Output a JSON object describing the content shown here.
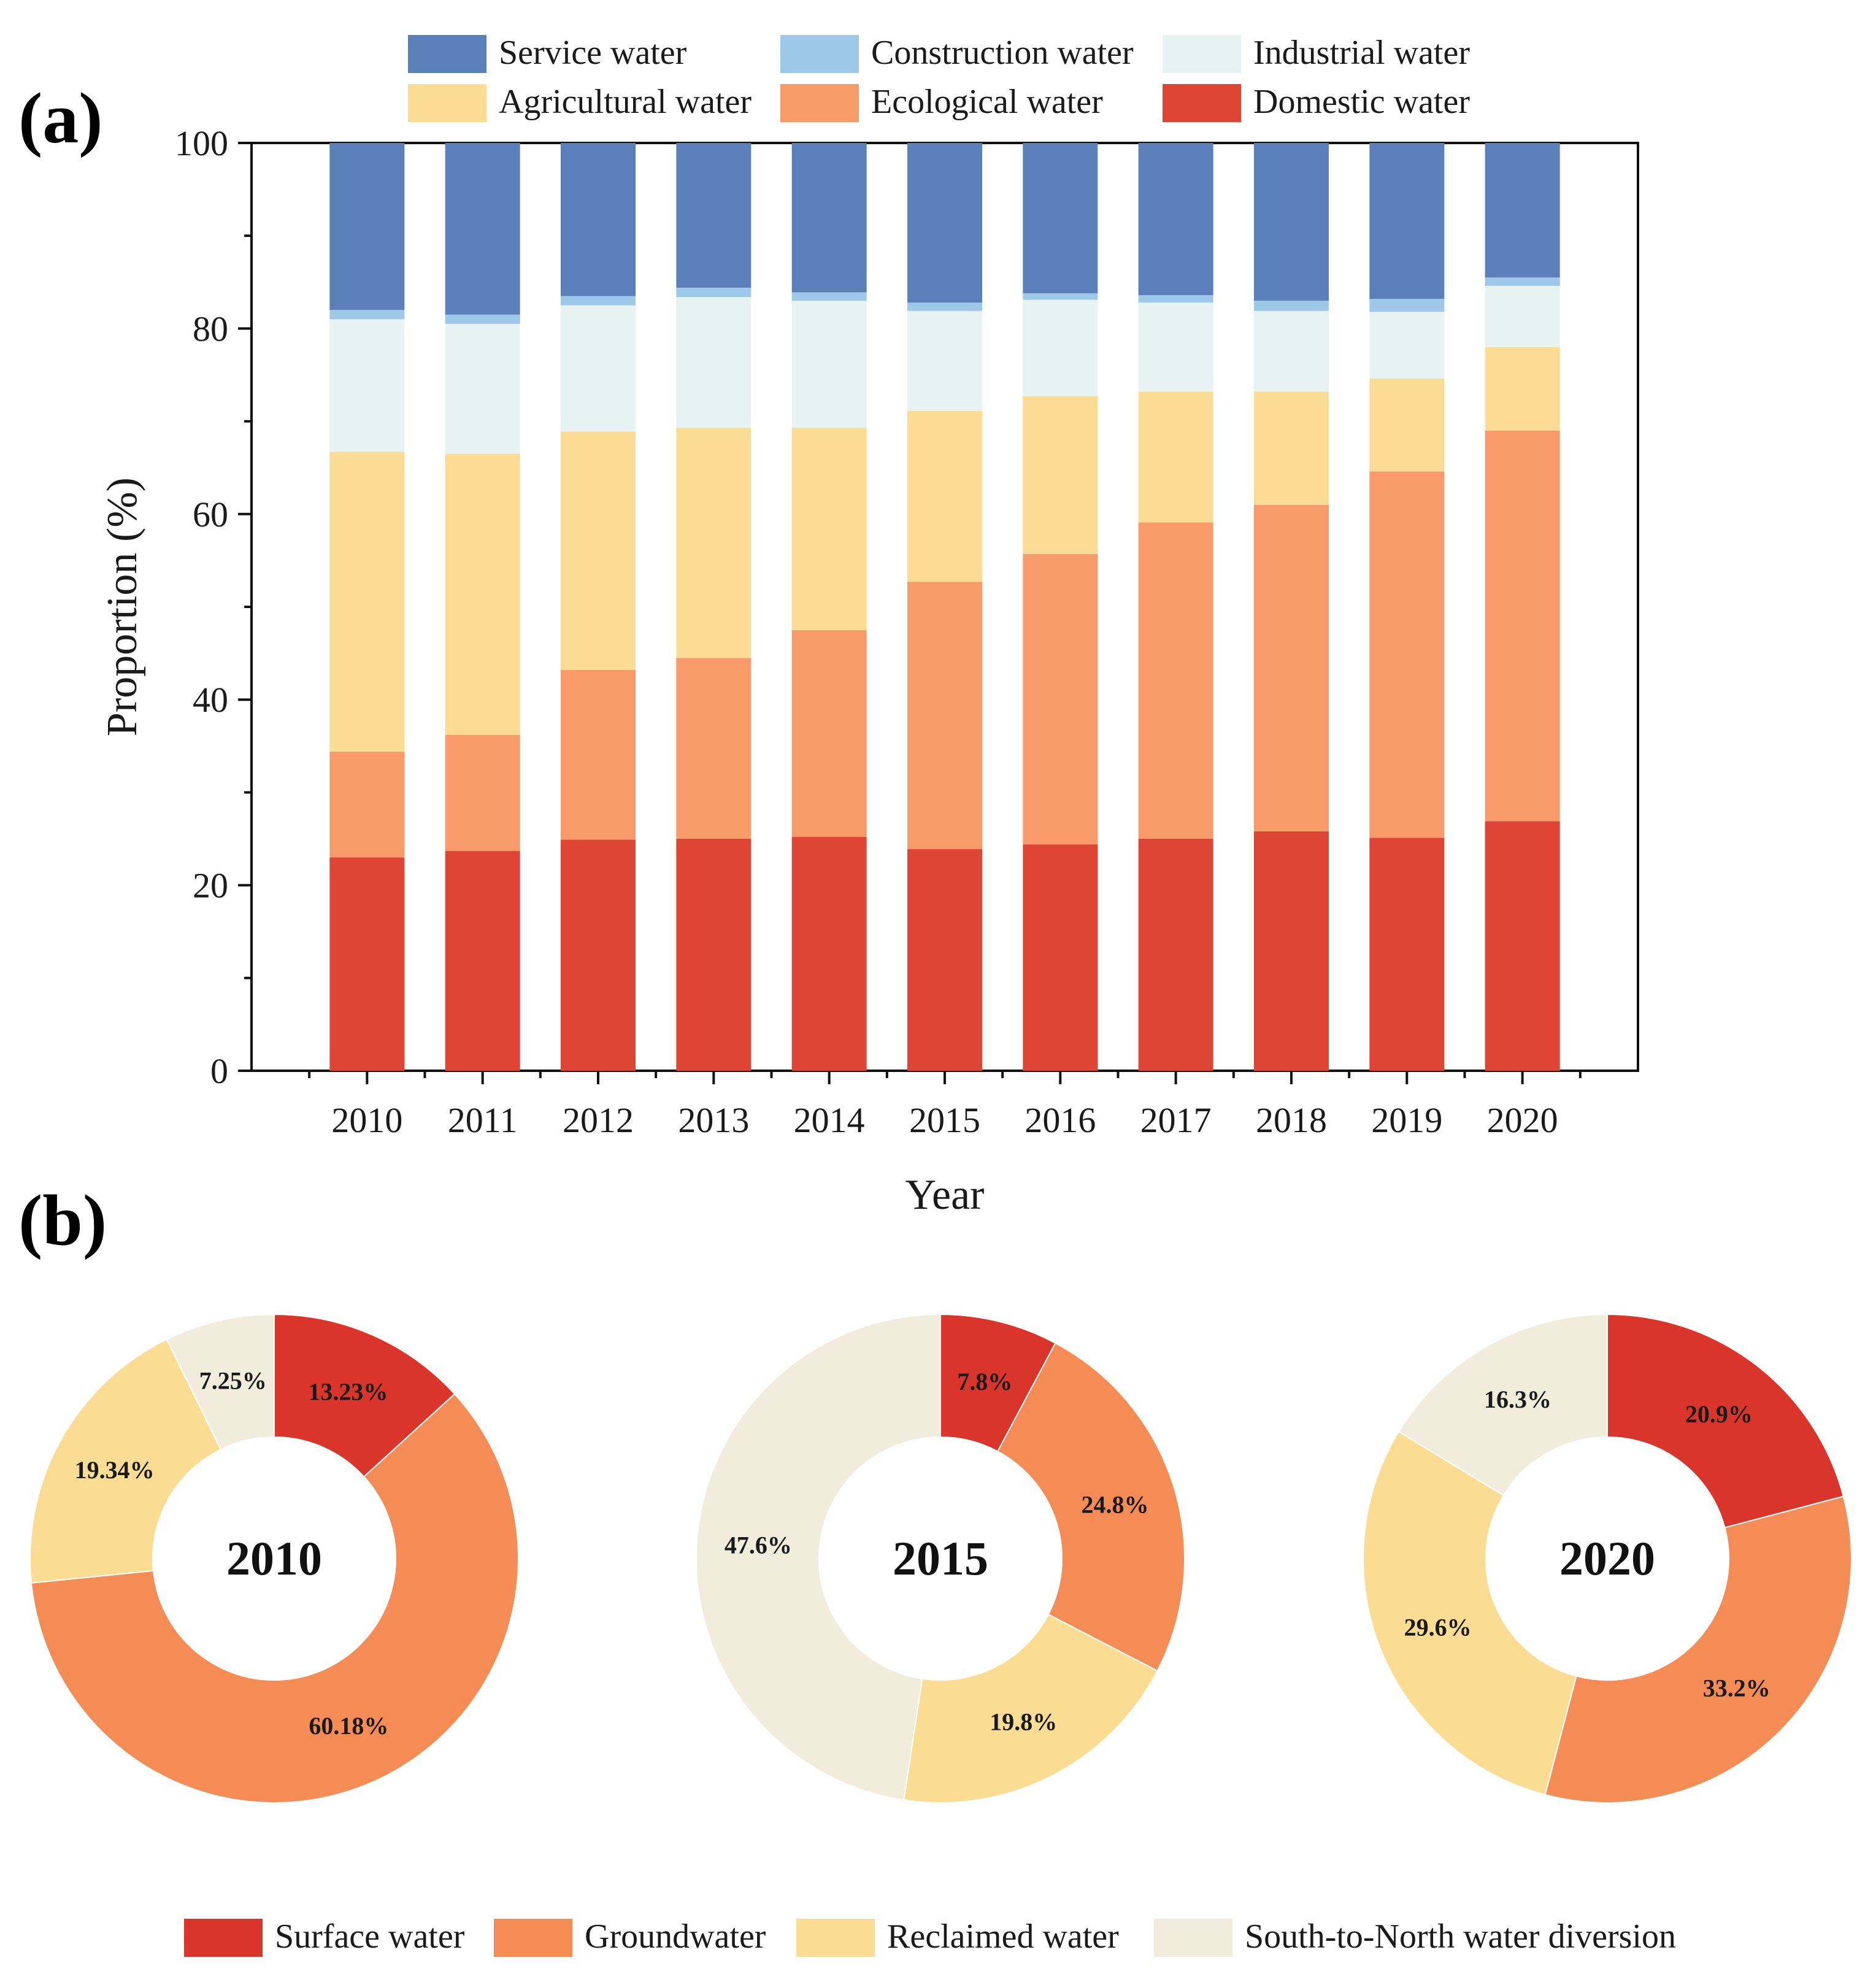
{
  "panel_labels": {
    "a": "(a)",
    "b": "(b)"
  },
  "chart_data": [
    {
      "type": "bar",
      "stacked": true,
      "title": "",
      "xlabel": "Year",
      "ylabel": "Proportion (%)",
      "ylim": [
        0,
        100
      ],
      "yticks": [
        "0",
        "20",
        "40",
        "60",
        "80",
        "100"
      ],
      "categories": [
        "2010",
        "2011",
        "2012",
        "2013",
        "2014",
        "2015",
        "2016",
        "2017",
        "2018",
        "2019",
        "2020"
      ],
      "legend_position": "top",
      "legend_order": [
        "Service water",
        "Construction water",
        "Industrial water",
        "Agricultural water",
        "Ecological water",
        "Domestic water"
      ],
      "series": [
        {
          "name": "Domestic water",
          "color": "#de4535",
          "values": [
            23.0,
            23.7,
            24.9,
            25.0,
            25.2,
            23.9,
            24.4,
            25.0,
            25.8,
            25.1,
            26.9
          ]
        },
        {
          "name": "Ecological water",
          "color": "#f99a6a",
          "values": [
            11.4,
            12.5,
            18.3,
            19.5,
            22.3,
            28.8,
            31.3,
            34.1,
            35.2,
            39.5,
            42.1
          ]
        },
        {
          "name": "Agricultural water",
          "color": "#fcdc94",
          "values": [
            32.3,
            30.3,
            25.7,
            24.8,
            21.8,
            18.4,
            17.0,
            14.1,
            12.2,
            10.0,
            9.0
          ]
        },
        {
          "name": "Industrial water",
          "color": "#e7f2f3",
          "values": [
            14.3,
            14.0,
            13.6,
            14.1,
            13.7,
            10.8,
            10.4,
            9.6,
            8.7,
            7.2,
            6.6
          ]
        },
        {
          "name": "Construction water",
          "color": "#9ec8e8",
          "values": [
            1.0,
            1.0,
            1.0,
            1.0,
            0.9,
            0.9,
            0.7,
            0.8,
            1.1,
            1.4,
            0.9
          ]
        },
        {
          "name": "Service water",
          "color": "#5b7fb8",
          "values": [
            18.0,
            18.5,
            16.5,
            15.6,
            16.1,
            17.2,
            16.2,
            16.4,
            17.0,
            16.8,
            14.5
          ]
        }
      ]
    },
    {
      "type": "pie",
      "donut": true,
      "center_label": "2010",
      "slices": [
        {
          "name": "Surface water",
          "value": 13.23,
          "label": "13.23%"
        },
        {
          "name": "Groundwater",
          "value": 60.18,
          "label": "60.18%"
        },
        {
          "name": "Reclaimed water",
          "value": 19.34,
          "label": "19.34%"
        },
        {
          "name": "South-to-North water diversion",
          "value": 7.25,
          "label": "7.25%"
        }
      ]
    },
    {
      "type": "pie",
      "donut": true,
      "center_label": "2015",
      "slices": [
        {
          "name": "Surface water",
          "value": 7.8,
          "label": "7.8%"
        },
        {
          "name": "Groundwater",
          "value": 24.8,
          "label": "24.8%"
        },
        {
          "name": "Reclaimed water",
          "value": 19.8,
          "label": "19.8%"
        },
        {
          "name": "South-to-North water diversion",
          "value": 47.6,
          "label": "47.6%"
        }
      ]
    },
    {
      "type": "pie",
      "donut": true,
      "center_label": "2020",
      "slices": [
        {
          "name": "Surface water",
          "value": 20.9,
          "label": "20.9%"
        },
        {
          "name": "Groundwater",
          "value": 33.2,
          "label": "33.2%"
        },
        {
          "name": "Reclaimed water",
          "value": 29.6,
          "label": "29.6%"
        },
        {
          "name": "South-to-North water diversion",
          "value": 16.3,
          "label": "16.3%"
        }
      ]
    }
  ],
  "pie_legend": [
    {
      "name": "Surface water",
      "color": "#d9352a"
    },
    {
      "name": "Groundwater",
      "color": "#f58b55"
    },
    {
      "name": "Reclaimed water",
      "color": "#fbdc93"
    },
    {
      "name": "South-to-North water diversion",
      "color": "#f1ecdb"
    }
  ]
}
